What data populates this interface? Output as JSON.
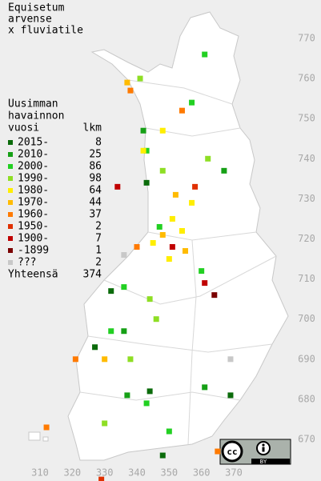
{
  "chart_data": {
    "type": "map",
    "title": [
      "Equisetum",
      "arvense",
      "x fluviatile"
    ],
    "legend_title": [
      "Uusimman",
      "havainnon",
      "vuosi"
    ],
    "count_header": "lkm",
    "xlim": [
      310,
      370
    ],
    "ylim": [
      670,
      770
    ],
    "xticks": [
      310,
      320,
      330,
      340,
      350,
      360,
      370
    ],
    "yticks": [
      770,
      760,
      750,
      740,
      730,
      720,
      710,
      700,
      690,
      680,
      670
    ],
    "series": [
      {
        "name": "2015-",
        "count": 8,
        "color": "#0b6b0b",
        "points": {
          "x": [
            344,
            332,
            327,
            369,
            348,
            343
          ],
          "y": [
            682,
            707,
            693,
            681,
            666,
            734
          ]
        }
      },
      {
        "name": "2010-",
        "count": 25,
        "color": "#16a016",
        "points": {
          "x": [
            337,
            342,
            367,
            336,
            361
          ],
          "y": [
            681,
            747,
            737,
            697,
            683
          ]
        }
      },
      {
        "name": "2000-",
        "count": 86,
        "color": "#22d022",
        "points": {
          "x": [
            343,
            347,
            357,
            361,
            336,
            332,
            350,
            343,
            360
          ],
          "y": [
            679,
            723,
            754,
            766,
            708,
            697,
            672,
            742,
            712
          ]
        }
      },
      {
        "name": "1990-",
        "count": 98,
        "color": "#8ede24",
        "points": {
          "x": [
            348,
            341,
            344,
            330,
            362,
            338,
            346
          ],
          "y": [
            737,
            760,
            705,
            674,
            740,
            690,
            700
          ]
        }
      },
      {
        "name": "1980-",
        "count": 64,
        "color": "#ffee00",
        "points": {
          "x": [
            351,
            354,
            342,
            357,
            345,
            348,
            350
          ],
          "y": [
            725,
            722,
            742,
            729,
            719,
            747,
            715
          ]
        }
      },
      {
        "name": "1970-",
        "count": 44,
        "color": "#ffbb00",
        "points": {
          "x": [
            348,
            337,
            352,
            355,
            330
          ],
          "y": [
            721,
            759,
            731,
            717,
            690
          ]
        }
      },
      {
        "name": "1960-",
        "count": 37,
        "color": "#ff7a00",
        "points": {
          "x": [
            338,
            321,
            354,
            312,
            365,
            340
          ],
          "y": [
            757,
            690,
            752,
            673,
            667,
            718
          ]
        }
      },
      {
        "name": "1950-",
        "count": 2,
        "color": "#e03000",
        "points": {
          "x": [
            329,
            358
          ],
          "y": [
            660,
            733
          ]
        }
      },
      {
        "name": "1900-",
        "count": 7,
        "color": "#c00000",
        "points": {
          "x": [
            334,
            361,
            351
          ],
          "y": [
            733,
            709,
            718
          ]
        }
      },
      {
        "name": "-1899",
        "count": 1,
        "color": "#7a0000",
        "points": {
          "x": [
            364
          ],
          "y": [
            706
          ]
        }
      },
      {
        "name": "???",
        "count": 2,
        "color": "#c8c8c8",
        "points": {
          "x": [
            336,
            369
          ],
          "y": [
            716,
            690
          ]
        }
      }
    ],
    "total_label": "Yhteensä",
    "total": 374,
    "license": {
      "badge": "cc",
      "attribution": "BY"
    }
  }
}
